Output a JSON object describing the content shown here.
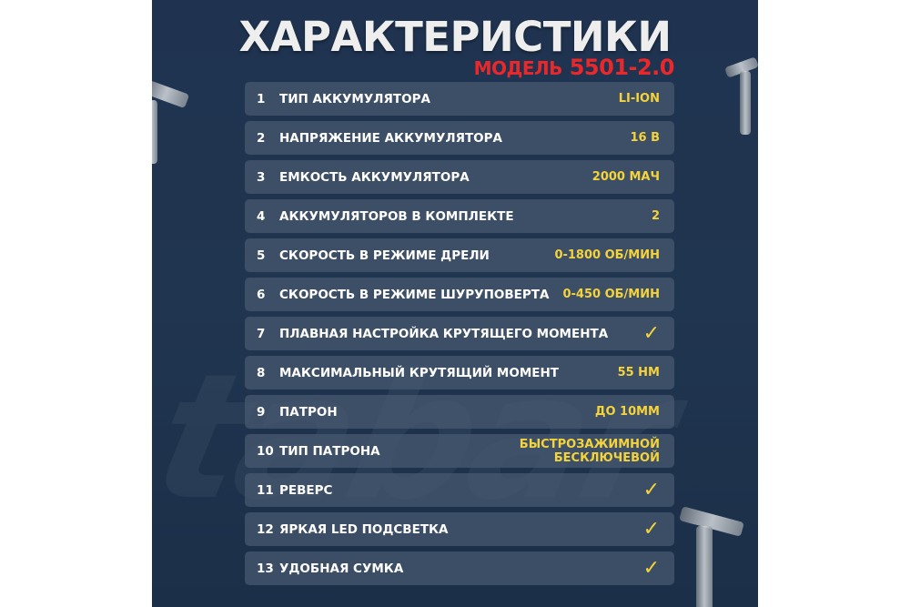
{
  "title": "ХАРАКТЕРИСТИКИ",
  "subtitle": {
    "prefix": "МОДЕЛЬ",
    "model": "5501-2.0"
  },
  "watermark": "tabar",
  "colors": {
    "panel": "#1f3350",
    "row": "#485a70",
    "accent_yellow": "#f5d33a",
    "accent_red": "#e8282b"
  },
  "specs": [
    {
      "num": "1",
      "label": "ТИП АККУМУЛЯТОРА",
      "value": "LI-ION"
    },
    {
      "num": "2",
      "label": "НАПРЯЖЕНИЕ АККУМУЛЯТОРА",
      "value": "16 В"
    },
    {
      "num": "3",
      "label": "ЕМКОСТЬ АККУМУЛЯТОРА",
      "value": "2000 МАЧ"
    },
    {
      "num": "4",
      "label": "АККУМУЛЯТОРОВ В КОМПЛЕКТЕ",
      "value": "2"
    },
    {
      "num": "5",
      "label": "СКОРОСТЬ В РЕЖИМЕ ДРЕЛИ",
      "value": "0-1800 ОБ/МИН"
    },
    {
      "num": "6",
      "label": "СКОРОСТЬ В РЕЖИМЕ ШУРУПОВЕРТА",
      "value": "0-450 ОБ/МИН"
    },
    {
      "num": "7",
      "label": "ПЛАВНАЯ НАСТРОЙКА КРУТЯЩЕГО МОМЕНТА",
      "check": "✓"
    },
    {
      "num": "8",
      "label": "МАКСИМАЛЬНЫЙ КРУТЯЩИЙ МОМЕНТ",
      "value": "55 НМ"
    },
    {
      "num": "9",
      "label": "ПАТРОН",
      "value": "ДО 10ММ"
    },
    {
      "num": "10",
      "label": "ТИП ПАТРОНА",
      "value": "БЫСТРОЗАЖИМНОЙ",
      "value2": "БЕСКЛЮЧЕВОЙ"
    },
    {
      "num": "11",
      "label": "РЕВЕРС",
      "check": "✓"
    },
    {
      "num": "12",
      "label": "ЯРКАЯ LED ПОДСВЕТКА",
      "check": "✓"
    },
    {
      "num": "13",
      "label": "УДОБНАЯ СУМКА",
      "check": "✓"
    }
  ]
}
